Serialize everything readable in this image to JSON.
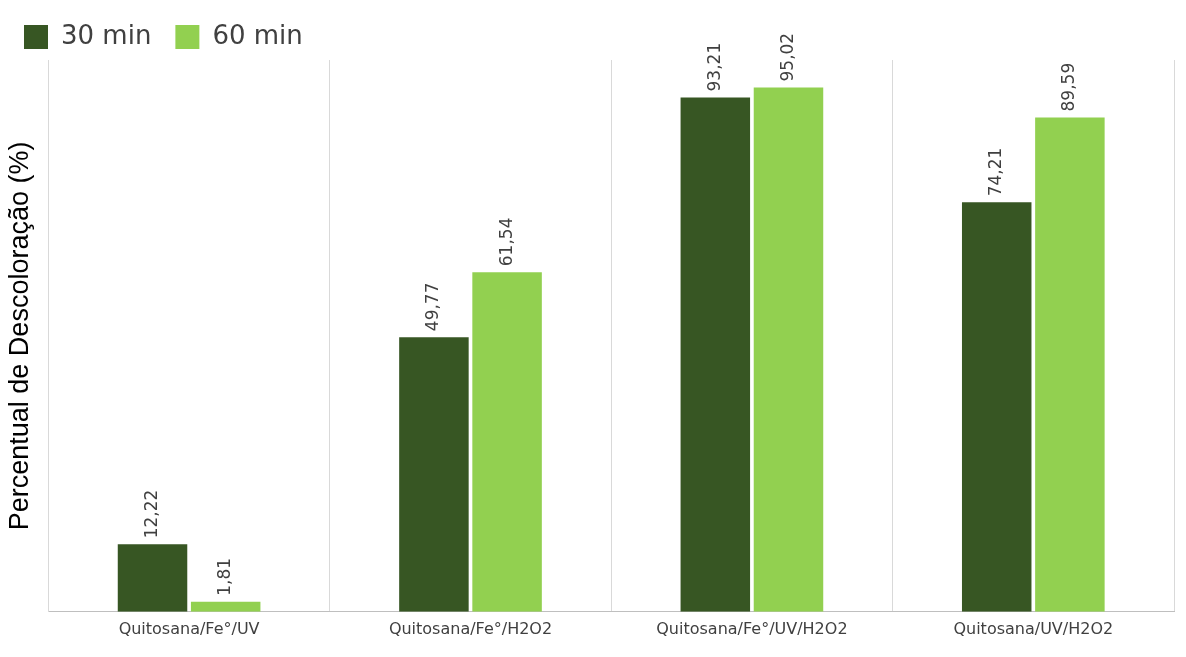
{
  "chart_data": {
    "type": "bar",
    "ylabel": "Percentual de Descoloração (%)",
    "categories": [
      "Quitosana/Fe°/UV",
      "Quitosana/Fe°/H2O2",
      "Quitosana/Fe°/UV/H2O2",
      "Quitosana/UV/H2O2"
    ],
    "series": [
      {
        "name": "30 min",
        "color": "#375623",
        "values": [
          12.22,
          49.77,
          93.21,
          74.21
        ],
        "value_labels": [
          "12,22",
          "49,77",
          "93,21",
          "74,21"
        ]
      },
      {
        "name": "60 min",
        "color": "#92d050",
        "values": [
          1.81,
          61.54,
          95.02,
          89.59
        ],
        "value_labels": [
          "1,81",
          "61,54",
          "95,02",
          "89,59"
        ]
      }
    ],
    "grid": "x",
    "legend": "top left"
  }
}
